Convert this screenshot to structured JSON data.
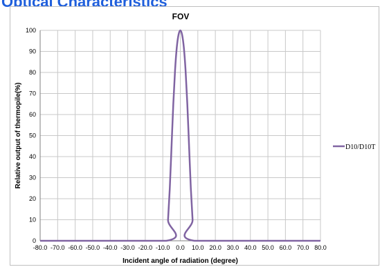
{
  "header": {
    "title": "Optical Characteristics"
  },
  "chart_data": {
    "type": "line",
    "title": "FOV",
    "xlabel": "Incident angle of radiation  (degree)",
    "ylabel": "Relative output of thermopile(%)",
    "xlim": [
      -80,
      80
    ],
    "ylim": [
      0,
      100
    ],
    "x_ticks": [
      "-80.0",
      "-70.0",
      "-60.0",
      "-50.0",
      "-40.0",
      "-30.0",
      "-20.0",
      "-10.0",
      "0.0",
      "10.0",
      "20.0",
      "30.0",
      "40.0",
      "50.0",
      "60.0",
      "70.0",
      "80.0"
    ],
    "x_tick_values": [
      -80,
      -70,
      -60,
      -50,
      -40,
      -30,
      -20,
      -10,
      0,
      10,
      20,
      30,
      40,
      50,
      60,
      70,
      80
    ],
    "y_ticks": [
      "0",
      "10",
      "20",
      "30",
      "40",
      "50",
      "60",
      "70",
      "80",
      "90",
      "100"
    ],
    "y_tick_values": [
      0,
      10,
      20,
      30,
      40,
      50,
      60,
      70,
      80,
      90,
      100
    ],
    "grid": true,
    "legend_position": "right",
    "series": [
      {
        "name": "D10/D10T",
        "color": "#8064a2",
        "x": [
          -80,
          -8,
          -7,
          -6,
          -5,
          -4,
          -3,
          -2,
          -1,
          0,
          1,
          2,
          3,
          4,
          5,
          6,
          7,
          8,
          80
        ],
        "y": [
          0,
          0,
          10,
          25,
          45,
          65,
          81,
          92,
          98,
          100,
          98,
          92,
          81,
          65,
          45,
          25,
          10,
          0,
          0
        ]
      }
    ]
  }
}
